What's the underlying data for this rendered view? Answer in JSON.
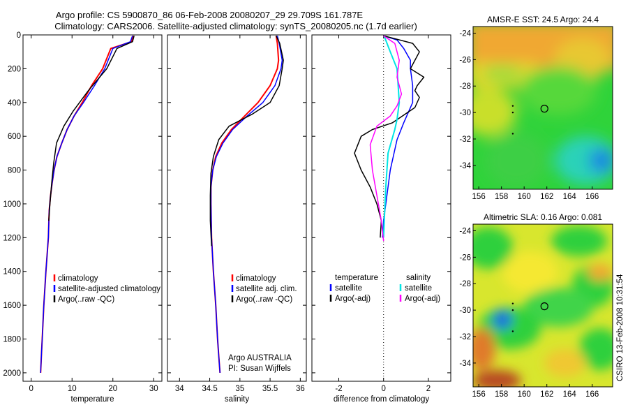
{
  "figure": {
    "title_line1": "Argo profile: CS 5900870_86 06-Feb-2008 20080207_29 29.709S 161.787E",
    "title_line2": "Climatology: CARS2006. Satellite-adjusted climatology: synTS_20080205.nc (1.7d earlier)",
    "footer_note": "CSIRO 13-Feb-2008 10:31:54"
  },
  "colors": {
    "climatology": "#ff0000",
    "satellite": "#0000ff",
    "argo": "#000000",
    "satellite_salinity": "#00e5e5",
    "argo_salinity": "#ff00ff"
  },
  "chart_data": [
    {
      "id": "temperature",
      "type": "line",
      "xlabel": "temperature",
      "ylabel": "",
      "xlim": [
        -2,
        32
      ],
      "ylim": [
        2050,
        0
      ],
      "xticks": [
        0,
        10,
        20,
        30
      ],
      "yticks": [
        0,
        200,
        400,
        600,
        800,
        1000,
        1200,
        1400,
        1600,
        1800,
        2000
      ],
      "legend_entries": [
        "climatology",
        "satellite-adjusted climatology",
        "Argo(..raw -QC)"
      ],
      "series": [
        {
          "name": "climatology",
          "color": "#ff0000",
          "width": 2,
          "x": [
            25.0,
            24.6,
            19.5,
            17.5,
            14.8,
            12.5,
            10.5,
            8.8,
            7.5,
            6.3,
            5.6,
            5.1,
            4.7,
            4.4,
            4.2,
            3.6,
            3.1,
            2.7,
            2.5,
            2.3
          ],
          "y": [
            5,
            40,
            80,
            200,
            300,
            400,
            480,
            560,
            640,
            720,
            800,
            880,
            960,
            1040,
            1200,
            1400,
            1600,
            1800,
            1900,
            2000
          ]
        },
        {
          "name": "satellite-adjusted climatology",
          "color": "#0000ff",
          "width": 1.5,
          "x": [
            24.8,
            24.3,
            20.0,
            18.0,
            15.5,
            12.8,
            10.5,
            8.8,
            7.5,
            6.3,
            5.6,
            5.1,
            4.7,
            4.4,
            4.2,
            3.6,
            3.1,
            2.7,
            2.5,
            2.3
          ],
          "y": [
            5,
            40,
            80,
            200,
            300,
            400,
            480,
            560,
            640,
            720,
            800,
            880,
            960,
            1040,
            1200,
            1400,
            1600,
            1800,
            1900,
            2000
          ]
        },
        {
          "name": "Argo(..raw -QC)",
          "color": "#000000",
          "width": 1.5,
          "x": [
            25.2,
            24.8,
            21.0,
            18.5,
            14.0,
            10.3,
            8.0,
            6.2,
            5.5,
            5.0,
            4.6,
            4.3
          ],
          "y": [
            5,
            40,
            80,
            200,
            330,
            450,
            540,
            640,
            760,
            880,
            1000,
            1100
          ]
        }
      ]
    },
    {
      "id": "salinity",
      "type": "line",
      "xlabel": "salinity",
      "ylabel": "",
      "xlim": [
        33.8,
        36.1
      ],
      "ylim": [
        2050,
        0
      ],
      "xticks": [
        34,
        34.5,
        35,
        35.5,
        36
      ],
      "legend_entries": [
        "climatology",
        "satellite adj. clim.",
        "Argo(..raw -QC)"
      ],
      "annotation_lines": [
        "Argo AUSTRALIA",
        "PI: Susan Wijffels"
      ],
      "series": [
        {
          "name": "climatology",
          "color": "#ff0000",
          "width": 2,
          "x": [
            35.6,
            35.62,
            35.64,
            35.62,
            35.5,
            35.3,
            35.08,
            34.86,
            34.7,
            34.6,
            34.55,
            34.52,
            34.52,
            34.53,
            34.56,
            34.6,
            34.63,
            34.65,
            34.67
          ],
          "y": [
            5,
            50,
            150,
            200,
            300,
            400,
            480,
            560,
            640,
            720,
            800,
            900,
            1000,
            1200,
            1400,
            1600,
            1800,
            1900,
            2000
          ]
        },
        {
          "name": "satellite adj. clim.",
          "color": "#0000ff",
          "width": 1.5,
          "x": [
            35.62,
            35.65,
            35.7,
            35.68,
            35.58,
            35.38,
            35.12,
            34.88,
            34.72,
            34.61,
            34.55,
            34.52,
            34.52,
            34.53,
            34.56,
            34.6,
            34.63,
            34.65,
            34.67
          ],
          "y": [
            5,
            50,
            150,
            200,
            300,
            400,
            480,
            560,
            640,
            720,
            800,
            900,
            1000,
            1200,
            1400,
            1600,
            1800,
            1900,
            2000
          ]
        },
        {
          "name": "Argo(..raw -QC)",
          "color": "#000000",
          "width": 1.5,
          "x": [
            35.6,
            35.66,
            35.72,
            35.7,
            35.65,
            35.5,
            35.2,
            34.82,
            34.65,
            34.56,
            34.52,
            34.51,
            34.51,
            34.53
          ],
          "y": [
            5,
            50,
            150,
            200,
            300,
            400,
            470,
            540,
            620,
            720,
            820,
            950,
            1100,
            1250
          ]
        }
      ]
    },
    {
      "id": "difference",
      "type": "line",
      "xlabel": "difference from climatology",
      "ylabel": "",
      "xlim": [
        -3.2,
        3.0
      ],
      "ylim": [
        2050,
        0
      ],
      "xticks": [
        -2,
        0,
        2
      ],
      "legend_headers": [
        "temperature",
        "salinity"
      ],
      "legend_entries": [
        "satellite",
        "Argo(-adj)",
        "satellite",
        "Argo(-adj)"
      ],
      "series": [
        {
          "name": "satellite",
          "group": "temperature",
          "color": "#0000ff",
          "width": 1.5,
          "x": [
            0.0,
            0.6,
            0.9,
            1.2,
            1.2,
            1.3,
            1.3,
            0.9,
            0.6,
            0.3,
            0.1,
            0.0,
            -0.05
          ],
          "y": [
            5,
            30,
            80,
            150,
            200,
            300,
            400,
            520,
            620,
            800,
            1000,
            1100,
            1200
          ]
        },
        {
          "name": "Argo(-adj)",
          "group": "temperature",
          "color": "#000000",
          "width": 1.5,
          "x": [
            0.0,
            1.3,
            1.6,
            1.2,
            1.8,
            1.5,
            1.4,
            1.6,
            1.4,
            0.4,
            -0.5,
            -1.0,
            -1.3,
            -1.0,
            -0.6,
            -0.3,
            -0.1,
            -0.15
          ],
          "y": [
            5,
            50,
            100,
            200,
            250,
            300,
            330,
            370,
            430,
            520,
            560,
            600,
            700,
            800,
            900,
            1000,
            1100,
            1200
          ]
        },
        {
          "name": "satellite",
          "group": "salinity",
          "color": "#00e5e5",
          "width": 2,
          "x": [
            0.02,
            0.3,
            0.6,
            0.7,
            0.6,
            0.5,
            0.2,
            0.1,
            0.03,
            0.0
          ],
          "y": [
            5,
            100,
            200,
            400,
            500,
            560,
            700,
            900,
            1100,
            1200
          ]
        },
        {
          "name": "Argo(-adj)",
          "group": "salinity",
          "color": "#ff00ff",
          "width": 1.5,
          "x": [
            0.0,
            0.5,
            0.7,
            0.6,
            0.8,
            0.6,
            0.3,
            -0.3,
            -0.6,
            -0.5,
            -0.3,
            -0.1,
            0.0
          ],
          "y": [
            5,
            50,
            150,
            250,
            350,
            420,
            480,
            540,
            650,
            800,
            950,
            1100,
            1220
          ]
        }
      ]
    },
    {
      "id": "sst_map",
      "type": "heatmap",
      "title": "AMSR-E SST: 24.5 Argo: 24.4",
      "xlim": [
        155.5,
        167.8
      ],
      "ylim": [
        -35.8,
        -23.5
      ],
      "xticks": [
        156,
        158,
        160,
        162,
        164,
        166
      ],
      "yticks": [
        -24,
        -26,
        -28,
        -30,
        -32,
        -34
      ],
      "marker": {
        "lon": 161.787,
        "lat": -29.709
      }
    },
    {
      "id": "sla_map",
      "type": "heatmap",
      "title": "Altimetric SLA: 0.16 Argo: 0.081",
      "xlim": [
        155.5,
        167.8
      ],
      "ylim": [
        -35.8,
        -23.5
      ],
      "xticks": [
        156,
        158,
        160,
        162,
        164,
        166
      ],
      "yticks": [
        -24,
        -26,
        -28,
        -30,
        -32,
        -34
      ],
      "marker": {
        "lon": 161.787,
        "lat": -29.709
      }
    }
  ]
}
